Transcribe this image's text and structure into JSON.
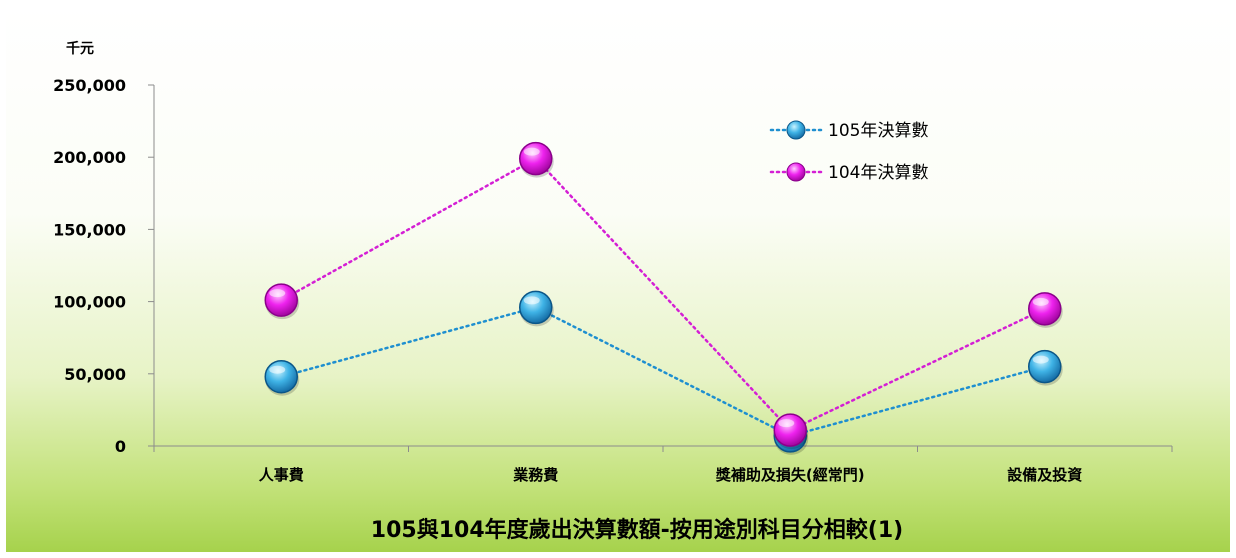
{
  "chart_data": {
    "type": "line",
    "title": "105與104年度歲出決算數額-按用途別科目分相較(1)",
    "unit": "千元",
    "categories": [
      "人事費",
      "業務費",
      "獎補助及損失(經常門)",
      "設備及投資"
    ],
    "ylim": [
      0,
      250000
    ],
    "yticks": [
      "0",
      "50,000",
      "100,000",
      "150,000",
      "200,000",
      "250,000"
    ],
    "ytick_values": [
      0,
      50000,
      100000,
      150000,
      200000,
      250000
    ],
    "legend_position": "top-right",
    "grid": false,
    "series": [
      {
        "name": "105年決算數",
        "values": [
          48000,
          96000,
          7000,
          55000
        ],
        "color": "#1e8fd0"
      },
      {
        "name": "104年決算數",
        "values": [
          101000,
          199000,
          11000,
          95000
        ],
        "color": "#d41fd4"
      }
    ]
  }
}
